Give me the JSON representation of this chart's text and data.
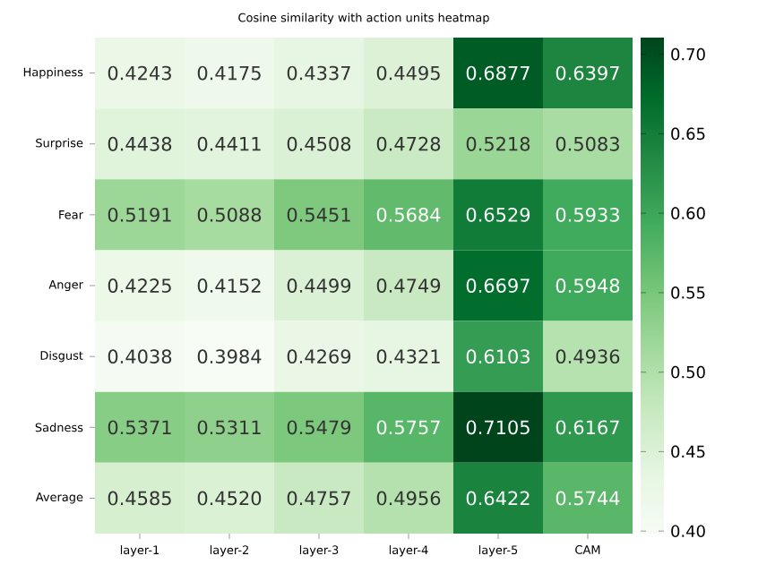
{
  "chart_data": {
    "type": "heatmap",
    "title": "Cosine similarity with action units heatmap",
    "categories": [
      "layer-1",
      "layer-2",
      "layer-3",
      "layer-4",
      "layer-5",
      "CAM"
    ],
    "y_categories": [
      "Happiness",
      "Surprise",
      "Fear",
      "Anger",
      "Disgust",
      "Sadness",
      "Average"
    ],
    "cells": [
      [
        0.4243,
        0.4175,
        0.4337,
        0.4495,
        0.6877,
        0.6397
      ],
      [
        0.4438,
        0.4411,
        0.4508,
        0.4728,
        0.5218,
        0.5083
      ],
      [
        0.5191,
        0.5088,
        0.5451,
        0.5684,
        0.6529,
        0.5933
      ],
      [
        0.4225,
        0.4152,
        0.4499,
        0.4749,
        0.6697,
        0.5948
      ],
      [
        0.4038,
        0.3984,
        0.4269,
        0.4321,
        0.6103,
        0.4936
      ],
      [
        0.5371,
        0.5311,
        0.5479,
        0.5757,
        0.7105,
        0.6167
      ],
      [
        0.4585,
        0.452,
        0.4757,
        0.4956,
        0.6422,
        0.5744
      ]
    ],
    "cell_labels": [
      [
        "0.4243",
        "0.4175",
        "0.4337",
        "0.4495",
        "0.6877",
        "0.6397"
      ],
      [
        "0.4438",
        "0.4411",
        "0.4508",
        "0.4728",
        "0.5218",
        "0.5083"
      ],
      [
        "0.5191",
        "0.5088",
        "0.5451",
        "0.5684",
        "0.6529",
        "0.5933"
      ],
      [
        "0.4225",
        "0.4152",
        "0.4499",
        "0.4749",
        "0.6697",
        "0.5948"
      ],
      [
        "0.4038",
        "0.3984",
        "0.4269",
        "0.4321",
        "0.6103",
        "0.4936"
      ],
      [
        "0.5371",
        "0.5311",
        "0.5479",
        "0.5757",
        "0.7105",
        "0.6167"
      ],
      [
        "0.4585",
        "0.4520",
        "0.4757",
        "0.4956",
        "0.6422",
        "0.5744"
      ]
    ],
    "clim": [
      0.3984,
      0.7105
    ],
    "cticks": [
      {
        "value": 0.4,
        "label": "0.40"
      },
      {
        "value": 0.45,
        "label": "0.45"
      },
      {
        "value": 0.5,
        "label": "0.50"
      },
      {
        "value": 0.55,
        "label": "0.55"
      },
      {
        "value": 0.6,
        "label": "0.60"
      },
      {
        "value": 0.65,
        "label": "0.65"
      },
      {
        "value": 0.7,
        "label": "0.70"
      }
    ]
  }
}
